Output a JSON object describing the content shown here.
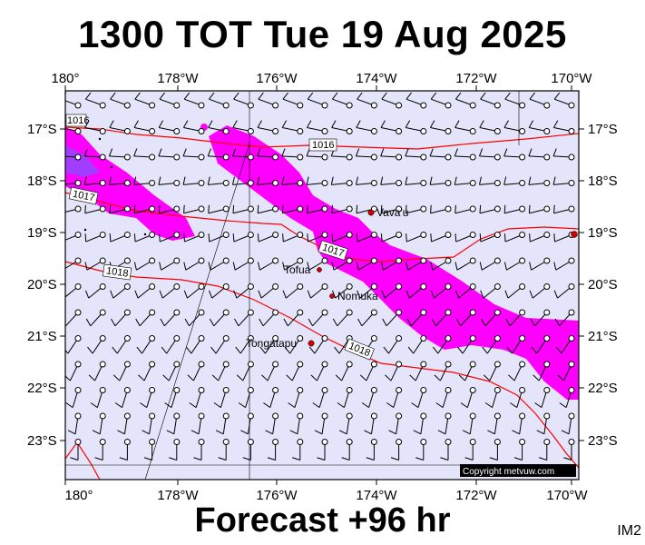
{
  "title": "1300 TOT Tue 19 Aug 2025",
  "footer": "Forecast +96 hr",
  "image_tag": "IM2",
  "copyright": "Copyright metvuw.com",
  "map": {
    "lon_labels": [
      "180°",
      "178°W",
      "176°W",
      "174°W",
      "172°W",
      "170°W"
    ],
    "lat_labels": [
      "17°S",
      "18°S",
      "19°S",
      "20°S",
      "21°S",
      "22°S",
      "23°S"
    ],
    "isobar_labels": [
      "1016",
      "1016",
      "1017",
      "1017",
      "1018",
      "1018"
    ],
    "places": [
      "Vava'u",
      "Tofua",
      "Nomuka",
      "Tongatapu"
    ],
    "colors": {
      "background": "#e4e4fa",
      "rain_heavy": "#ff00ff",
      "rain_core": "#a23dff",
      "isobar": "#ff0000",
      "wind": "#000000"
    }
  }
}
